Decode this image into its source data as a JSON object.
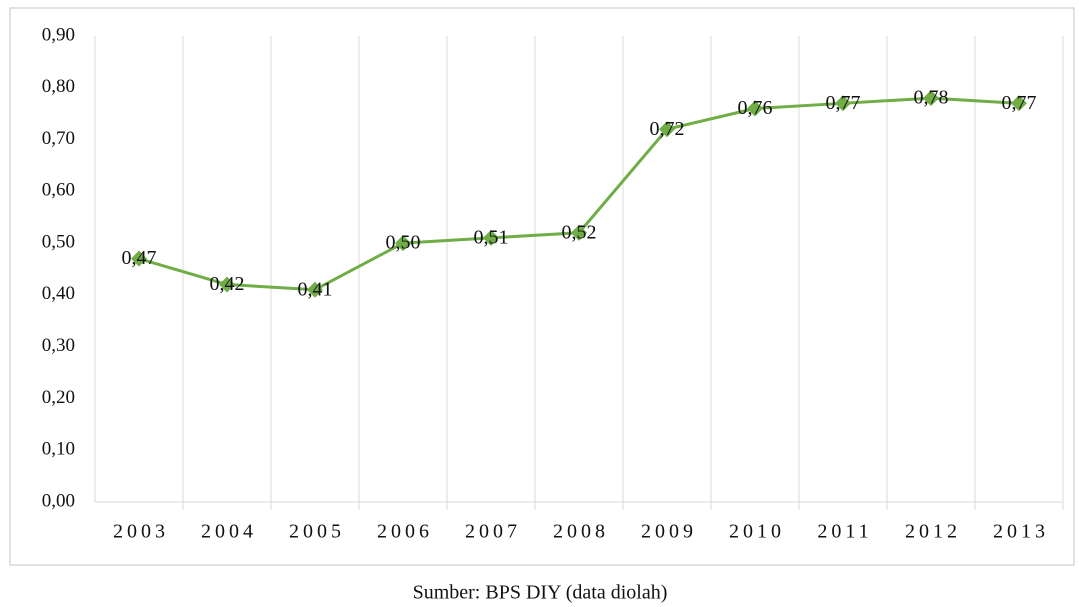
{
  "chart_data": {
    "type": "line",
    "categories": [
      "2003",
      "2004",
      "2005",
      "2006",
      "2007",
      "2008",
      "2009",
      "2010",
      "2011",
      "2012",
      "2013"
    ],
    "series": [
      {
        "color": "#70ad47",
        "values": [
          0.47,
          0.42,
          0.41,
          0.5,
          0.51,
          0.52,
          0.72,
          0.76,
          0.77,
          0.78,
          0.77
        ],
        "value_labels": [
          "0,47",
          "0,42",
          "0,41",
          "0,50",
          "0,51",
          "0,52",
          "0,72",
          "0,76",
          "0,77",
          "0,78",
          "0,77"
        ]
      }
    ],
    "ylim": [
      0,
      0.9
    ],
    "yticks": [
      {
        "value": 0,
        "label": "0,00"
      },
      {
        "value": 0.1,
        "label": "0,10"
      },
      {
        "value": 0.2,
        "label": "0,20"
      },
      {
        "value": 0.3,
        "label": "0,30"
      },
      {
        "value": 0.4,
        "label": "0,40"
      },
      {
        "value": 0.5,
        "label": "0,50"
      },
      {
        "value": 0.6,
        "label": "0,60"
      },
      {
        "value": 0.7,
        "label": "0,70"
      },
      {
        "value": 0.8,
        "label": "0,80"
      },
      {
        "value": 0.9,
        "label": "0,90"
      }
    ],
    "grid": "x",
    "source": "Sumber: BPS DIY (data diolah)"
  }
}
